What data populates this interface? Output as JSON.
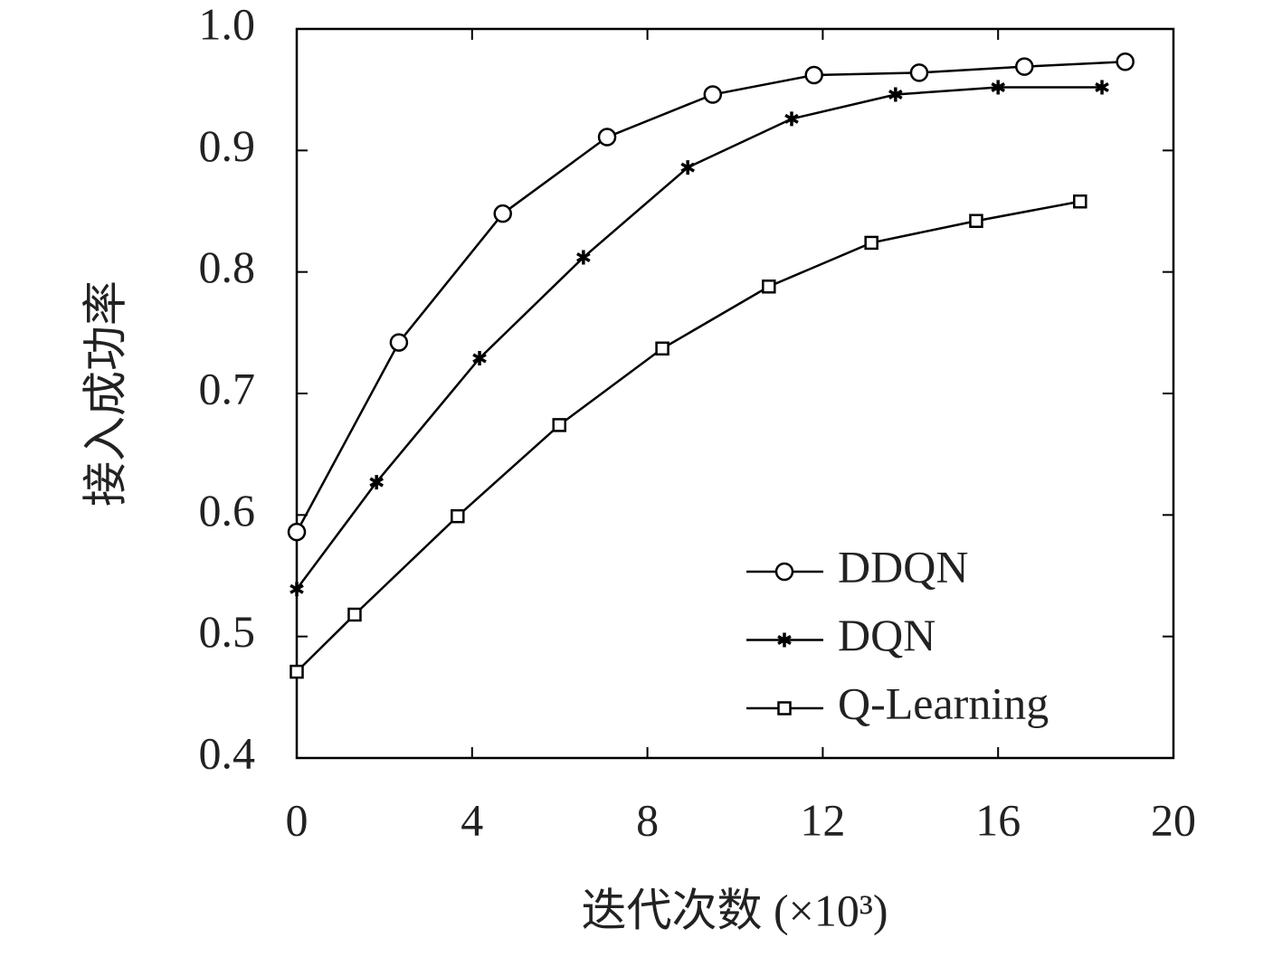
{
  "chart_data": {
    "type": "line",
    "y_label": "接入成功率",
    "x_label": "迭代次数 (×10³)",
    "xlim": [
      0,
      20
    ],
    "xticks": [
      0,
      4,
      8,
      12,
      16,
      20
    ],
    "ylim": [
      0.4,
      1.0
    ],
    "yticks": [
      0.4,
      0.5,
      0.6,
      0.7,
      0.8,
      0.9,
      {
        "value": 1,
        "label": "1.0"
      }
    ],
    "grid": false,
    "legend": "lower right",
    "series": [
      {
        "name": "DDQN",
        "color": "#000000",
        "marker": "circle",
        "x": [
          0,
          2.33,
          4.7,
          7.08,
          9.49,
          11.8,
          14.2,
          16.6,
          18.9
        ],
        "values": [
          0.586,
          0.742,
          0.848,
          0.911,
          0.946,
          0.962,
          0.964,
          0.969,
          0.973
        ]
      },
      {
        "name": "DQN",
        "color": "#000000",
        "marker": "asterisk",
        "x": [
          0,
          1.82,
          4.17,
          6.54,
          8.92,
          11.29,
          13.66,
          16.0,
          18.37
        ],
        "values": [
          0.539,
          0.627,
          0.729,
          0.812,
          0.886,
          0.926,
          0.946,
          0.952,
          0.952
        ]
      },
      {
        "name": "Q-Learning",
        "color": "#000000",
        "marker": "square",
        "x": [
          0,
          1.32,
          3.67,
          5.99,
          8.34,
          10.77,
          13.11,
          15.5,
          17.87
        ],
        "values": [
          0.471,
          0.518,
          0.599,
          0.674,
          0.737,
          0.788,
          0.824,
          0.842,
          0.858
        ]
      }
    ]
  }
}
